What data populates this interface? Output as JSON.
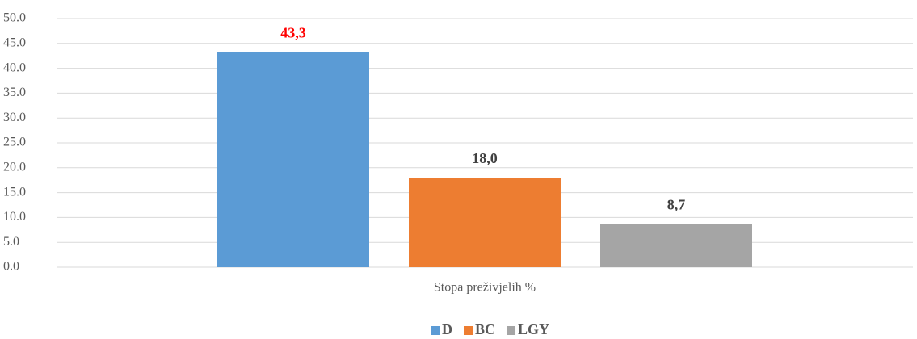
{
  "chart_data": {
    "type": "bar",
    "categories": [
      "Stopa preživjelih %"
    ],
    "series": [
      {
        "name": "D",
        "color": "#5b9bd5",
        "label_color": "#ff0000",
        "values": [
          43.3
        ],
        "value_labels": [
          "43,3"
        ]
      },
      {
        "name": "BC",
        "color": "#ed7d31",
        "label_color": "#404040",
        "values": [
          18.0
        ],
        "value_labels": [
          "18,0"
        ]
      },
      {
        "name": "LGY",
        "color": "#a5a5a5",
        "label_color": "#404040",
        "values": [
          8.7
        ],
        "value_labels": [
          "8,7"
        ]
      }
    ],
    "ylim": [
      0,
      50
    ],
    "yticks": [
      {
        "value": 0,
        "label": "0.0"
      },
      {
        "value": 5,
        "label": "5.0"
      },
      {
        "value": 10,
        "label": "10.0"
      },
      {
        "value": 15,
        "label": "15.0"
      },
      {
        "value": 20,
        "label": "20.0"
      },
      {
        "value": 25,
        "label": "25.0"
      },
      {
        "value": 30,
        "label": "30.0"
      },
      {
        "value": 35,
        "label": "35.0"
      },
      {
        "value": 40,
        "label": "40.0"
      },
      {
        "value": 45,
        "label": "45.0"
      },
      {
        "value": 50,
        "label": "50.0"
      }
    ],
    "grid": true,
    "legend": "bottom"
  }
}
